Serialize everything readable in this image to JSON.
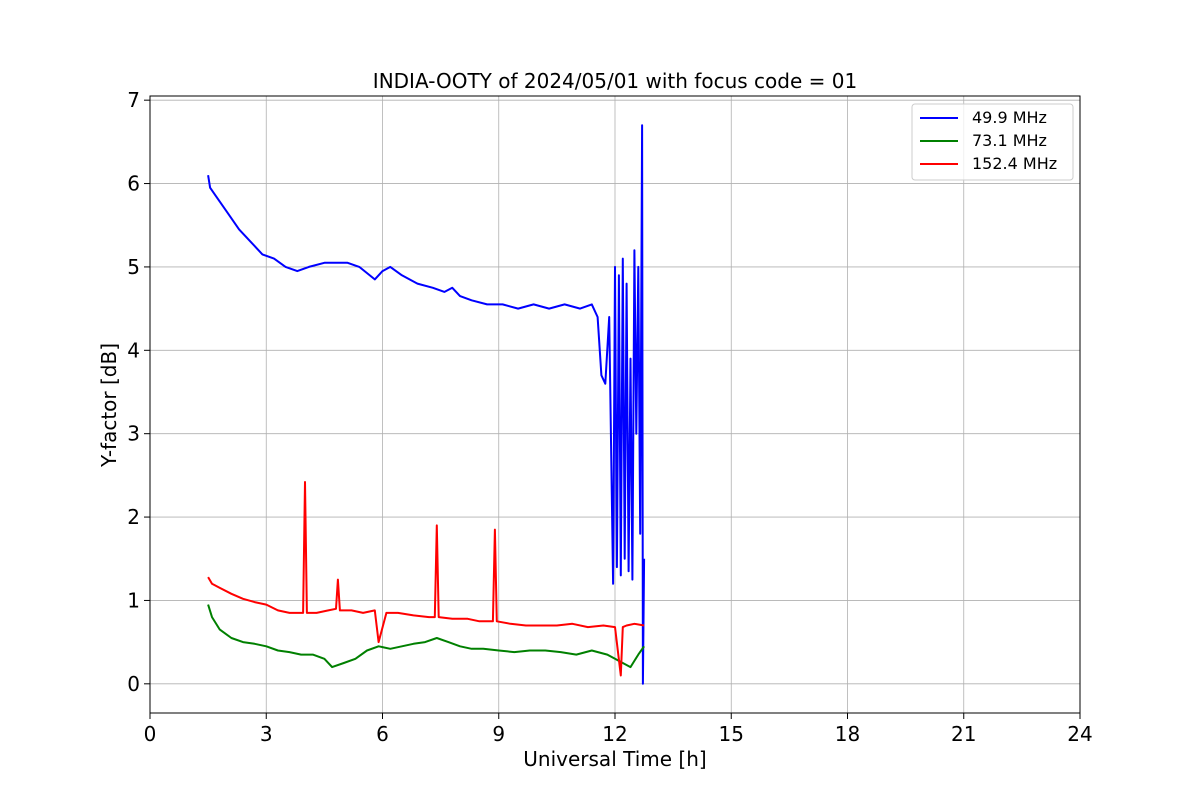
{
  "chart_data": {
    "type": "line",
    "title": "INDIA-OOTY of 2024/05/01 with focus code = 01",
    "xlabel": "Universal Time [h]",
    "ylabel": "Y-factor [dB]",
    "xlim": [
      0,
      24
    ],
    "ylim": [
      -0.35,
      7.05
    ],
    "xticks": [
      0,
      3,
      6,
      9,
      12,
      15,
      18,
      21,
      24
    ],
    "yticks": [
      0,
      1,
      2,
      3,
      4,
      5,
      6,
      7
    ],
    "grid": true,
    "legend": "top-right",
    "series": [
      {
        "name": "49.9 MHz",
        "legend_label": " 49.9 MHz",
        "color": "#0000ff",
        "x": [
          1.5,
          1.55,
          1.7,
          2.0,
          2.3,
          2.6,
          2.9,
          3.2,
          3.5,
          3.8,
          4.1,
          4.5,
          4.8,
          5.1,
          5.4,
          5.8,
          6.0,
          6.2,
          6.5,
          6.9,
          7.3,
          7.6,
          7.8,
          8.0,
          8.3,
          8.7,
          9.1,
          9.5,
          9.9,
          10.3,
          10.7,
          11.1,
          11.4,
          11.55,
          11.65,
          11.75,
          11.85,
          11.95,
          12.0,
          12.05,
          12.1,
          12.15,
          12.2,
          12.25,
          12.3,
          12.35,
          12.4,
          12.45,
          12.5,
          12.55,
          12.6,
          12.65,
          12.7,
          12.72,
          12.75
        ],
        "y": [
          6.1,
          5.95,
          5.85,
          5.65,
          5.45,
          5.3,
          5.15,
          5.1,
          5.0,
          4.95,
          5.0,
          5.05,
          5.05,
          5.05,
          5.0,
          4.85,
          4.95,
          5.0,
          4.9,
          4.8,
          4.75,
          4.7,
          4.75,
          4.65,
          4.6,
          4.55,
          4.55,
          4.5,
          4.55,
          4.5,
          4.55,
          4.5,
          4.55,
          4.4,
          3.7,
          3.6,
          4.4,
          1.2,
          5.0,
          1.4,
          4.9,
          1.3,
          5.1,
          1.5,
          4.8,
          1.35,
          3.9,
          1.25,
          5.2,
          3.0,
          5.0,
          1.8,
          6.7,
          0.0,
          1.5
        ]
      },
      {
        "name": "73.1 MHz",
        "legend_label": " 73.1 MHz",
        "color": "#008000",
        "x": [
          1.5,
          1.6,
          1.8,
          2.1,
          2.4,
          2.7,
          3.0,
          3.3,
          3.6,
          3.9,
          4.2,
          4.5,
          4.7,
          5.0,
          5.3,
          5.6,
          5.9,
          6.2,
          6.5,
          6.8,
          7.1,
          7.4,
          7.7,
          8.0,
          8.3,
          8.6,
          9.0,
          9.4,
          9.8,
          10.2,
          10.6,
          11.0,
          11.4,
          11.8,
          12.0,
          12.2,
          12.4,
          12.6,
          12.75
        ],
        "y": [
          0.95,
          0.8,
          0.65,
          0.55,
          0.5,
          0.48,
          0.45,
          0.4,
          0.38,
          0.35,
          0.35,
          0.3,
          0.2,
          0.25,
          0.3,
          0.4,
          0.45,
          0.42,
          0.45,
          0.48,
          0.5,
          0.55,
          0.5,
          0.45,
          0.42,
          0.42,
          0.4,
          0.38,
          0.4,
          0.4,
          0.38,
          0.35,
          0.4,
          0.35,
          0.3,
          0.25,
          0.2,
          0.35,
          0.45
        ]
      },
      {
        "name": "152.4 MHz",
        "legend_label": "152.4 MHz",
        "color": "#ff0000",
        "x": [
          1.5,
          1.6,
          1.8,
          2.1,
          2.4,
          2.7,
          3.0,
          3.3,
          3.6,
          3.95,
          4.0,
          4.05,
          4.3,
          4.6,
          4.8,
          4.85,
          4.9,
          5.2,
          5.5,
          5.8,
          5.9,
          6.1,
          6.4,
          6.8,
          7.2,
          7.35,
          7.4,
          7.45,
          7.8,
          8.2,
          8.5,
          8.85,
          8.9,
          8.95,
          9.3,
          9.7,
          10.1,
          10.5,
          10.9,
          11.3,
          11.7,
          12.0,
          12.15,
          12.2,
          12.3,
          12.5,
          12.75
        ],
        "y": [
          1.28,
          1.2,
          1.15,
          1.08,
          1.02,
          0.98,
          0.95,
          0.88,
          0.85,
          0.85,
          2.42,
          0.85,
          0.85,
          0.88,
          0.9,
          1.25,
          0.88,
          0.88,
          0.85,
          0.88,
          0.5,
          0.85,
          0.85,
          0.82,
          0.8,
          0.8,
          1.9,
          0.8,
          0.78,
          0.78,
          0.75,
          0.75,
          1.85,
          0.75,
          0.72,
          0.7,
          0.7,
          0.7,
          0.72,
          0.68,
          0.7,
          0.68,
          0.1,
          0.68,
          0.7,
          0.72,
          0.7
        ]
      }
    ]
  }
}
